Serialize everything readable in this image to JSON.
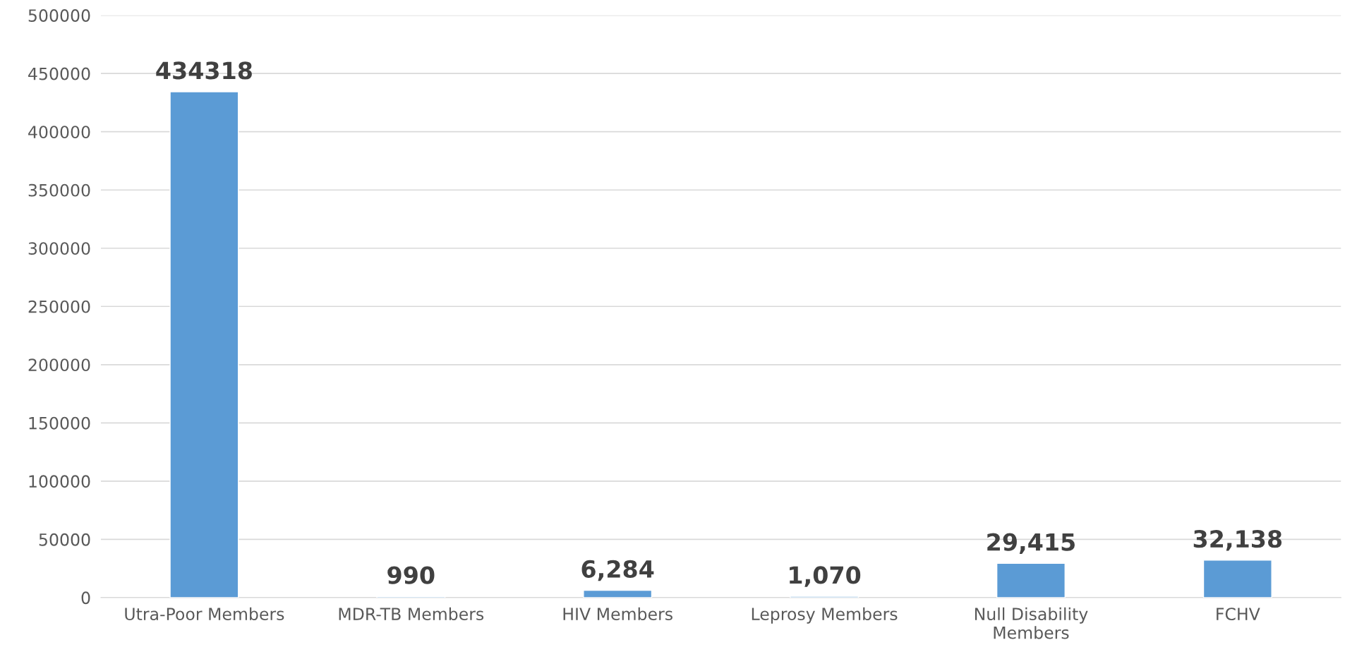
{
  "chart_data": {
    "type": "bar",
    "categories": [
      "Utra-Poor Members",
      "MDR-TB Members",
      "HIV Members",
      "Leprosy Members",
      "Null Disability Members",
      "FCHV"
    ],
    "values": [
      434318,
      990,
      6284,
      1070,
      29415,
      32138
    ],
    "value_labels": [
      "434318",
      "990",
      "6,284",
      "1,070",
      "29,415",
      "32,138"
    ],
    "color": "#5b9bd5",
    "ylim": [
      0,
      500000
    ],
    "yticks": [
      0,
      50000,
      100000,
      150000,
      200000,
      250000,
      300000,
      350000,
      400000,
      450000,
      500000
    ],
    "grid": "y"
  }
}
